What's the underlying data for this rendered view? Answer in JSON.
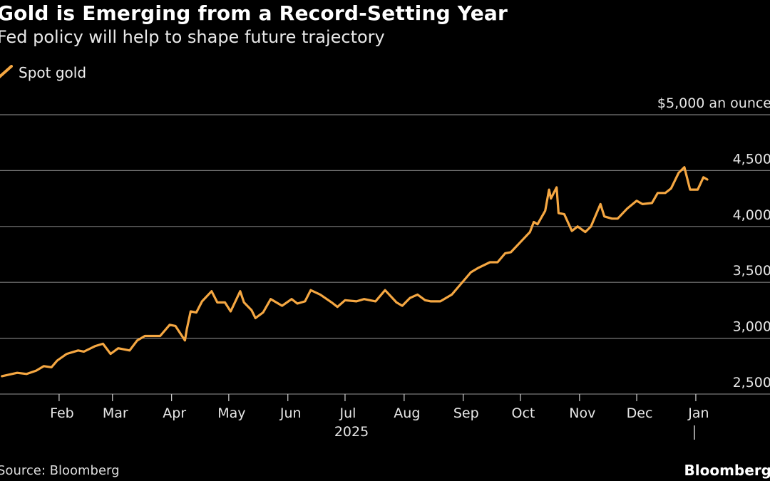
{
  "header": {
    "title": "Gold is Emerging from a Record-Setting Year",
    "subtitle": "Fed policy will help to shape future trajectory"
  },
  "footer": {
    "source": "Source: Bloomberg",
    "brand": "Bloomberg"
  },
  "colors": {
    "background": "#000000",
    "series": "#f5a742",
    "grid": "#7a7a7a",
    "text": "#ffffff"
  },
  "chart_data": {
    "type": "line",
    "title": "Gold is Emerging from a Record-Setting Year",
    "subtitle": "Fed policy will help to shape future trajectory",
    "y_unit_label": "$5,000 an ounce",
    "ylim": [
      2500,
      5000
    ],
    "y_ticks": [
      {
        "value": 5000,
        "label": "$5,000 an ounce"
      },
      {
        "value": 4500,
        "label": "4,500"
      },
      {
        "value": 4000,
        "label": "4,000"
      },
      {
        "value": 3500,
        "label": "3,500"
      },
      {
        "value": 3000,
        "label": "3,000"
      },
      {
        "value": 2500,
        "label": "2,500"
      }
    ],
    "x_range": [
      "2025-01-01",
      "2026-01-10"
    ],
    "x_ticks": [
      {
        "date": "2025-02-01",
        "label": "Feb"
      },
      {
        "date": "2025-03-01",
        "label": "Mar"
      },
      {
        "date": "2025-04-01",
        "label": "Apr"
      },
      {
        "date": "2025-05-01",
        "label": "May"
      },
      {
        "date": "2025-06-01",
        "label": "Jun"
      },
      {
        "date": "2025-07-01",
        "label": "Jul"
      },
      {
        "date": "2025-08-01",
        "label": "Aug"
      },
      {
        "date": "2025-09-01",
        "label": "Sep"
      },
      {
        "date": "2025-10-01",
        "label": "Oct"
      },
      {
        "date": "2025-11-01",
        "label": "Nov"
      },
      {
        "date": "2025-12-01",
        "label": "Dec"
      },
      {
        "date": "2026-01-01",
        "label": "Jan"
      }
    ],
    "year_label": "2025",
    "grid": true,
    "legend": "top-left",
    "series": [
      {
        "name": "Spot gold",
        "points": [
          [
            "2025-01-02",
            2660
          ],
          [
            "2025-01-10",
            2690
          ],
          [
            "2025-01-15",
            2680
          ],
          [
            "2025-01-20",
            2710
          ],
          [
            "2025-01-24",
            2750
          ],
          [
            "2025-01-28",
            2740
          ],
          [
            "2025-01-31",
            2800
          ],
          [
            "2025-02-05",
            2860
          ],
          [
            "2025-02-11",
            2890
          ],
          [
            "2025-02-14",
            2880
          ],
          [
            "2025-02-20",
            2930
          ],
          [
            "2025-02-24",
            2950
          ],
          [
            "2025-02-28",
            2860
          ],
          [
            "2025-03-04",
            2910
          ],
          [
            "2025-03-10",
            2890
          ],
          [
            "2025-03-14",
            2980
          ],
          [
            "2025-03-18",
            3020
          ],
          [
            "2025-03-21",
            3020
          ],
          [
            "2025-03-26",
            3020
          ],
          [
            "2025-03-31",
            3120
          ],
          [
            "2025-04-03",
            3110
          ],
          [
            "2025-04-08",
            2980
          ],
          [
            "2025-04-09",
            3080
          ],
          [
            "2025-04-11",
            3240
          ],
          [
            "2025-04-14",
            3230
          ],
          [
            "2025-04-17",
            3330
          ],
          [
            "2025-04-22",
            3420
          ],
          [
            "2025-04-25",
            3320
          ],
          [
            "2025-04-29",
            3320
          ],
          [
            "2025-05-02",
            3240
          ],
          [
            "2025-05-07",
            3420
          ],
          [
            "2025-05-09",
            3320
          ],
          [
            "2025-05-13",
            3250
          ],
          [
            "2025-05-15",
            3180
          ],
          [
            "2025-05-19",
            3230
          ],
          [
            "2025-05-23",
            3350
          ],
          [
            "2025-05-29",
            3290
          ],
          [
            "2025-06-03",
            3350
          ],
          [
            "2025-06-06",
            3310
          ],
          [
            "2025-06-10",
            3330
          ],
          [
            "2025-06-13",
            3430
          ],
          [
            "2025-06-18",
            3390
          ],
          [
            "2025-06-24",
            3320
          ],
          [
            "2025-06-27",
            3280
          ],
          [
            "2025-07-01",
            3340
          ],
          [
            "2025-07-07",
            3330
          ],
          [
            "2025-07-11",
            3350
          ],
          [
            "2025-07-17",
            3330
          ],
          [
            "2025-07-22",
            3430
          ],
          [
            "2025-07-28",
            3320
          ],
          [
            "2025-07-31",
            3290
          ],
          [
            "2025-08-04",
            3360
          ],
          [
            "2025-08-08",
            3390
          ],
          [
            "2025-08-12",
            3340
          ],
          [
            "2025-08-15",
            3330
          ],
          [
            "2025-08-20",
            3330
          ],
          [
            "2025-08-26",
            3390
          ],
          [
            "2025-08-29",
            3450
          ],
          [
            "2025-09-02",
            3530
          ],
          [
            "2025-09-05",
            3590
          ],
          [
            "2025-09-09",
            3630
          ],
          [
            "2025-09-15",
            3680
          ],
          [
            "2025-09-19",
            3680
          ],
          [
            "2025-09-23",
            3760
          ],
          [
            "2025-09-26",
            3770
          ],
          [
            "2025-10-01",
            3860
          ],
          [
            "2025-10-06",
            3950
          ],
          [
            "2025-10-08",
            4040
          ],
          [
            "2025-10-10",
            4020
          ],
          [
            "2025-10-14",
            4140
          ],
          [
            "2025-10-16",
            4330
          ],
          [
            "2025-10-17",
            4250
          ],
          [
            "2025-10-20",
            4350
          ],
          [
            "2025-10-21",
            4120
          ],
          [
            "2025-10-24",
            4110
          ],
          [
            "2025-10-28",
            3960
          ],
          [
            "2025-10-31",
            4000
          ],
          [
            "2025-11-04",
            3950
          ],
          [
            "2025-11-07",
            4000
          ],
          [
            "2025-11-12",
            4200
          ],
          [
            "2025-11-14",
            4090
          ],
          [
            "2025-11-18",
            4070
          ],
          [
            "2025-11-21",
            4070
          ],
          [
            "2025-11-26",
            4160
          ],
          [
            "2025-12-01",
            4230
          ],
          [
            "2025-12-04",
            4200
          ],
          [
            "2025-12-09",
            4210
          ],
          [
            "2025-12-12",
            4300
          ],
          [
            "2025-12-16",
            4300
          ],
          [
            "2025-12-19",
            4340
          ],
          [
            "2025-12-23",
            4480
          ],
          [
            "2025-12-26",
            4530
          ],
          [
            "2025-12-29",
            4330
          ],
          [
            "2026-01-02",
            4330
          ],
          [
            "2026-01-05",
            4440
          ],
          [
            "2026-01-07",
            4420
          ]
        ]
      }
    ]
  }
}
